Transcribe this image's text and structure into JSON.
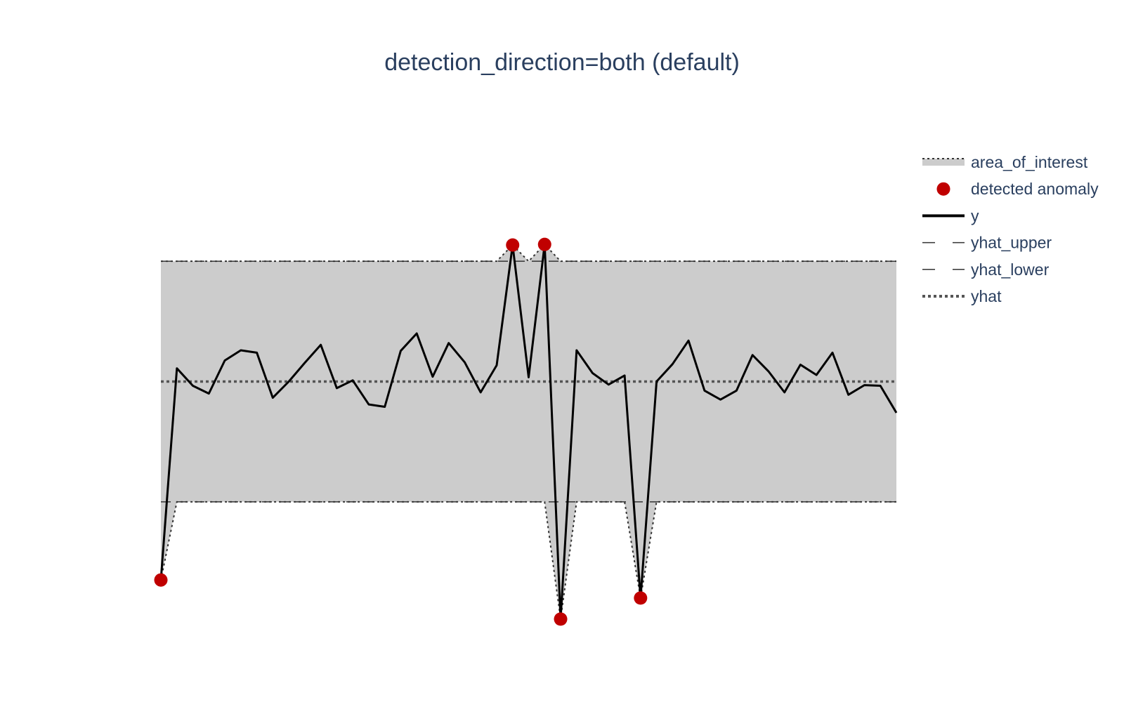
{
  "chart_data": {
    "type": "line",
    "title": "detection_direction=both (default)",
    "xlabel": "",
    "ylabel": "",
    "axes_visible": false,
    "grid": false,
    "legend_position": "right",
    "x_range": [
      0,
      46
    ],
    "y_range": [
      -4.5,
      4.5
    ],
    "yhat": 0,
    "yhat_upper": 2,
    "yhat_lower": -2,
    "y": [
      -3.3,
      0.22,
      -0.07,
      -0.2,
      0.35,
      0.52,
      0.48,
      -0.27,
      0.0,
      0.31,
      0.61,
      -0.11,
      0.02,
      -0.38,
      -0.42,
      0.51,
      0.8,
      0.08,
      0.64,
      0.32,
      -0.18,
      0.27,
      2.27,
      0.07,
      2.28,
      -3.95,
      0.52,
      0.14,
      -0.05,
      0.1,
      -3.6,
      0.0,
      0.29,
      0.68,
      -0.15,
      -0.3,
      -0.15,
      0.44,
      0.17,
      -0.18,
      0.28,
      0.11,
      0.48,
      -0.22,
      -0.06,
      -0.07,
      -0.52
    ],
    "anomaly_indices": [
      0,
      22,
      24,
      25,
      30
    ],
    "anomaly_y": [
      -3.3,
      2.27,
      2.28,
      -3.95,
      -3.6
    ],
    "colors": {
      "line": "#000000",
      "anomaly": "#c00000",
      "area": "#cccccc",
      "yhat": "#555555",
      "bounds": "#333333",
      "title": "#2a3f5f"
    },
    "legend": [
      {
        "label": "area_of_interest",
        "marker": "area-dotted"
      },
      {
        "label": "detected anomaly",
        "marker": "dot"
      },
      {
        "label": "y",
        "marker": "solid-line"
      },
      {
        "label": "yhat_upper",
        "marker": "dashed-line"
      },
      {
        "label": "yhat_lower",
        "marker": "dashed-line"
      },
      {
        "label": "yhat",
        "marker": "dotted-line"
      }
    ]
  }
}
